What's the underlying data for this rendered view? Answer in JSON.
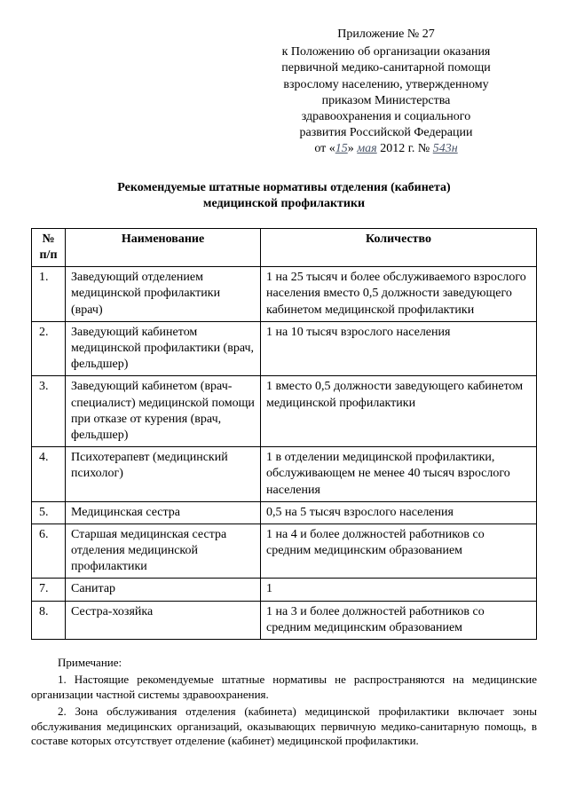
{
  "header": {
    "appendix": "Приложение № 27",
    "lines": [
      "к Положению об организации оказания",
      "первичной медико-санитарной помощи",
      "взрослому населению, утвержденному",
      "приказом Министерства",
      "здравоохранения и социального",
      "развития Российской Федерации"
    ],
    "date_prefix": "от «",
    "date_day": "15",
    "date_mid": "» ",
    "date_month": "мая",
    "date_year": " 2012 г. № ",
    "date_num": "543н"
  },
  "title_line1": "Рекомендуемые штатные нормативы отделения (кабинета)",
  "title_line2": "медицинской профилактики",
  "table": {
    "col_num": "№ п/п",
    "col_name": "Наименование",
    "col_qty": "Количество",
    "rows": [
      {
        "n": "1.",
        "name": "Заведующий отделением медицинской профилактики (врач)",
        "qty": "1 на 25 тысяч и более обслуживаемого взрослого населения вместо 0,5 должности заведующего кабинетом медицинской профилактики"
      },
      {
        "n": "2.",
        "name": "Заведующий кабинетом медицинской профилактики (врач, фельдшер)",
        "qty": "1 на 10 тысяч взрослого населения"
      },
      {
        "n": "3.",
        "name": "Заведующий кабинетом (врач-специалист) медицинской помощи при отказе от курения (врач, фельдшер)",
        "qty": "1 вместо 0,5 должности заведующего кабинетом медицинской профилактики"
      },
      {
        "n": "4.",
        "name": "Психотерапевт (медицинский психолог)",
        "qty": "1 в отделении медицинской профилактики, обслуживающем не менее 40 тысяч взрослого населения"
      },
      {
        "n": "5.",
        "name": "Медицинская сестра",
        "qty": "0,5  на 5 тысяч взрослого населения"
      },
      {
        "n": "6.",
        "name": "Старшая медицинская сестра отделения медицинской профилактики",
        "qty": "1 на 4 и более должностей работников со средним медицинским образованием"
      },
      {
        "n": "7.",
        "name": "Санитар",
        "qty": "1"
      },
      {
        "n": "8.",
        "name": "Сестра-хозяйка",
        "qty": "1 на 3 и более должностей работников со средним медицинским образованием"
      }
    ]
  },
  "notes": {
    "label": "Примечание:",
    "items": [
      "1. Настоящие рекомендуемые штатные нормативы не распространяются на медицинские организации частной системы здравоохранения.",
      "2. Зона обслуживания отделения (кабинета) медицинской профилактики включает зоны обслуживания медицинских организаций, оказывающих первичную медико-санитарную помощь, в составе которых отсутствует отделение (кабинет) медицинской профилактики."
    ]
  }
}
